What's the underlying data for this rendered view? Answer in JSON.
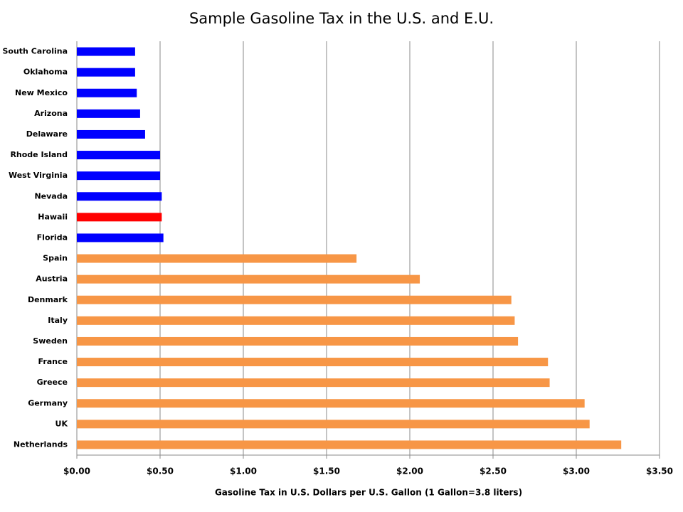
{
  "chart_data": {
    "type": "hbar",
    "title": "Sample Gasoline Tax in the U.S. and E.U.",
    "x_label": "Gasoline Tax in U.S. Dollars per U.S. Gallon (1 Gallon=3.8 liters)",
    "categories": [
      "South Carolina",
      "Oklahoma",
      "New Mexico",
      "Arizona",
      "Delaware",
      "Rhode Island",
      "West Virginia",
      "Nevada",
      "Hawaii",
      "Florida",
      "Spain",
      "Austria",
      "Denmark",
      "Italy",
      "Sweden",
      "France",
      "Greece",
      "Germany",
      "UK",
      "Netherlands"
    ],
    "values": [
      0.35,
      0.35,
      0.36,
      0.38,
      0.41,
      0.5,
      0.5,
      0.51,
      0.51,
      0.52,
      1.68,
      2.06,
      2.61,
      2.63,
      2.65,
      2.83,
      2.84,
      3.05,
      3.08,
      3.27
    ],
    "colors": [
      "#0000ff",
      "#0000ff",
      "#0000ff",
      "#0000ff",
      "#0000ff",
      "#0000ff",
      "#0000ff",
      "#0000ff",
      "#ff0000",
      "#0000ff",
      "#f79646",
      "#f79646",
      "#f79646",
      "#f79646",
      "#f79646",
      "#f79646",
      "#f79646",
      "#f79646",
      "#f79646",
      "#f79646"
    ],
    "xlim": [
      0,
      3.5
    ],
    "xticks": [
      {
        "value": 0,
        "label": "$0.00"
      },
      {
        "value": 0.5,
        "label": "$0.50"
      },
      {
        "value": 1,
        "label": "$1.00"
      },
      {
        "value": 1.5,
        "label": "$1.50"
      },
      {
        "value": 2,
        "label": "$2.00"
      },
      {
        "value": 2.5,
        "label": "$2.50"
      },
      {
        "value": 3,
        "label": "$3.00"
      },
      {
        "value": 3.5,
        "label": "$3.50"
      }
    ],
    "grid": true
  }
}
